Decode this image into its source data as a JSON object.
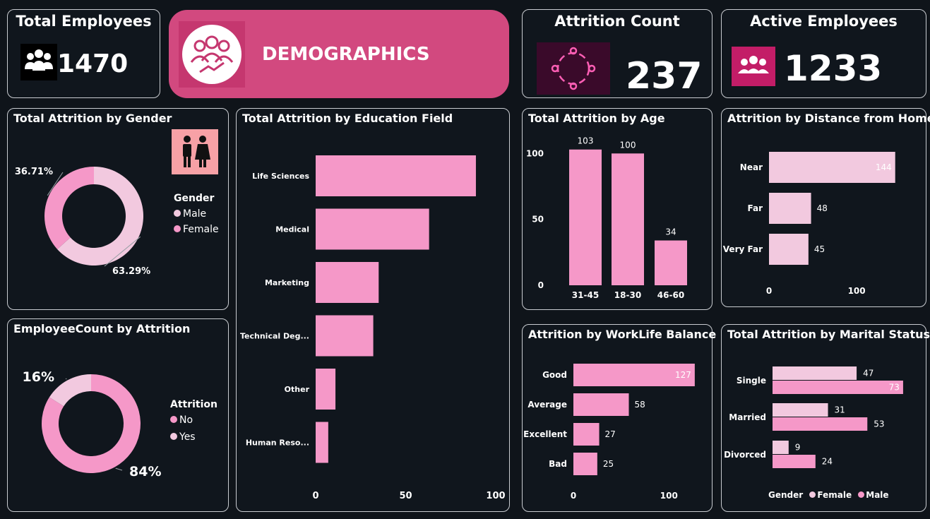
{
  "kpis": {
    "total_employees": {
      "title": "Total Employees",
      "value": "1470"
    },
    "attrition_count": {
      "title": "Attrition Count",
      "value": "237"
    },
    "active_employees": {
      "title": "Active Employees",
      "value": "1233"
    }
  },
  "banner": {
    "title": "DEMOGRAPHICS"
  },
  "colors": {
    "pink": "#f598c8",
    "light_pink": "#f2c9df",
    "banner": "#d2497f",
    "background": "#0f141a"
  },
  "gender": {
    "title": "Total Attrition by Gender",
    "legend_title": "Gender",
    "chart_data": {
      "type": "pie",
      "labels": [
        "Male",
        "Female"
      ],
      "values": [
        63.29,
        36.71
      ],
      "value_labels": [
        "63.29%",
        "36.71%"
      ],
      "colors": [
        "#f2c9df",
        "#f598c8"
      ],
      "legend": "right"
    }
  },
  "attrition": {
    "title": "EmployeeCount by Attrition",
    "legend_title": "Attrition",
    "chart_data": {
      "type": "pie",
      "labels": [
        "No",
        "Yes"
      ],
      "values": [
        84,
        16
      ],
      "value_labels": [
        "84%",
        "16%"
      ],
      "colors": [
        "#f598c8",
        "#f2c9df"
      ],
      "legend": "right"
    }
  },
  "education": {
    "title": "Total Attrition by Education Field",
    "chart_data": {
      "type": "bar",
      "orientation": "horizontal",
      "categories": [
        "Life Sciences",
        "Medical",
        "Marketing",
        "Technical Deg...",
        "Other",
        "Human Reso..."
      ],
      "values": [
        89,
        63,
        35,
        32,
        11,
        7
      ],
      "xlim": [
        0,
        100
      ],
      "xticks": [
        0,
        50,
        100
      ],
      "grid": false
    }
  },
  "age": {
    "title": "Total Attrition by Age",
    "chart_data": {
      "type": "bar",
      "categories": [
        "31-45",
        "18-30",
        "46-60"
      ],
      "values": [
        103,
        100,
        34
      ],
      "ylim": [
        0,
        120
      ],
      "yticks": [
        0,
        50,
        100
      ]
    }
  },
  "distance": {
    "title": "Attrition by Distance from Home",
    "chart_data": {
      "type": "bar",
      "orientation": "horizontal",
      "categories": [
        "Near",
        "Far",
        "Very Far"
      ],
      "values": [
        144,
        48,
        45
      ],
      "xlim": [
        0,
        170
      ],
      "xticks": [
        0,
        100
      ]
    }
  },
  "worklife": {
    "title": "Attrition by WorkLife Balance",
    "chart_data": {
      "type": "bar",
      "orientation": "horizontal",
      "categories": [
        "Good",
        "Average",
        "Excellent",
        "Bad"
      ],
      "values": [
        127,
        58,
        27,
        25
      ],
      "xlim": [
        0,
        150
      ],
      "xticks": [
        0,
        100
      ]
    }
  },
  "marital": {
    "title": "Total Attrition by Marital Status",
    "legend_title": "Gender",
    "chart_data": {
      "type": "bar",
      "orientation": "horizontal",
      "categories": [
        "Single",
        "Married",
        "Divorced"
      ],
      "series": [
        {
          "name": "Female",
          "values": [
            47,
            31,
            9
          ],
          "color": "#f2c9df"
        },
        {
          "name": "Male",
          "values": [
            73,
            53,
            24
          ],
          "color": "#f598c8"
        }
      ],
      "xlim": [
        0,
        75
      ],
      "legend": "bottom"
    }
  }
}
